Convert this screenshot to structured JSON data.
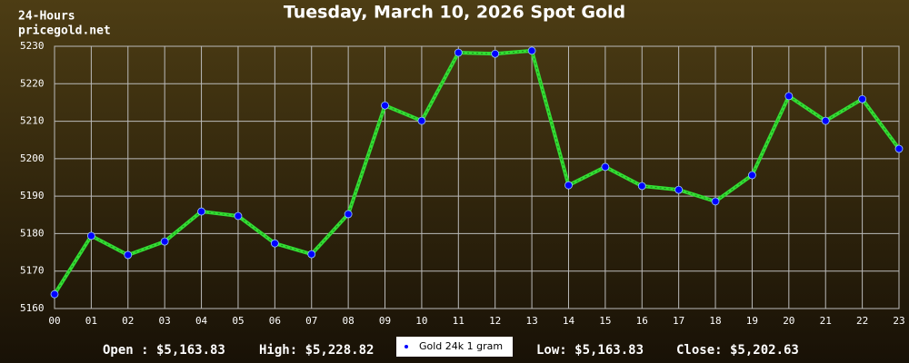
{
  "chart_data": {
    "type": "line",
    "title": "Tuesday, March 10, 2026 Spot Gold",
    "corner_lines": [
      "24-Hours",
      "pricegold.net"
    ],
    "categories": [
      "00",
      "01",
      "02",
      "03",
      "04",
      "05",
      "06",
      "07",
      "08",
      "09",
      "10",
      "11",
      "12",
      "13",
      "14",
      "15",
      "16",
      "17",
      "18",
      "19",
      "20",
      "21",
      "22",
      "23"
    ],
    "series": [
      {
        "name": "Gold 24k 1 gram",
        "color": "#33dd33",
        "marker_color": "#0000ff",
        "values": [
          5163.83,
          5179.4,
          5174.3,
          5177.9,
          5185.9,
          5184.7,
          5177.4,
          5174.5,
          5185.2,
          5214.2,
          5210.1,
          5228.3,
          5228.0,
          5228.82,
          5192.9,
          5197.8,
          5192.7,
          5191.7,
          5188.6,
          5195.6,
          5216.7,
          5210.1,
          5215.9,
          5202.63
        ]
      }
    ],
    "ylim": [
      5160,
      5230
    ],
    "yticks": [
      5160,
      5170,
      5180,
      5190,
      5200,
      5210,
      5220,
      5230
    ],
    "grid": true,
    "stats": [
      "Open : $5,163.83",
      "High: $5,228.82",
      "Low: $5,163.83",
      "Close: $5,202.63"
    ]
  }
}
